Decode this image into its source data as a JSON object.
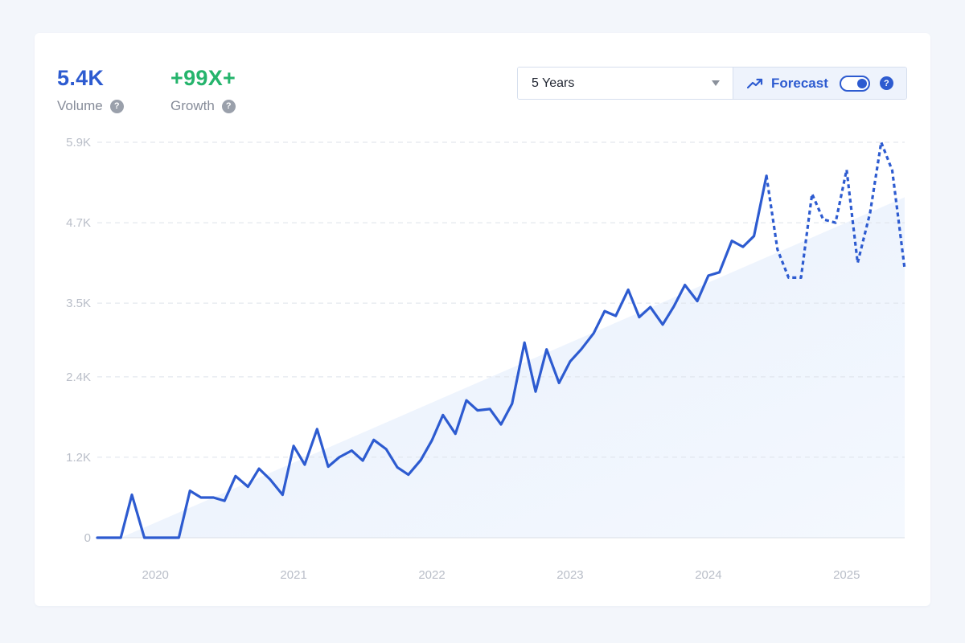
{
  "stats": {
    "volume": {
      "value": "5.4K",
      "label": "Volume"
    },
    "growth": {
      "value": "+99X+",
      "label": "Growth"
    }
  },
  "colors": {
    "volume_value": "#2d5bd0",
    "growth_value": "#25b46c",
    "line": "#2d5bd0",
    "trend_fill": "#e8f0fc",
    "grid": "#dde2ea"
  },
  "controls": {
    "range_selected": "5 Years",
    "forecast_label": "Forecast",
    "forecast_enabled": true,
    "help_glyph": "?",
    "icons": [
      "chevron-down-icon",
      "trend-up-icon",
      "help-icon"
    ]
  },
  "chart_data": {
    "type": "line",
    "title": "",
    "xlabel": "",
    "ylabel": "",
    "ylim": [
      0,
      5900
    ],
    "xlim": [
      2019.58,
      2025.42
    ],
    "grid": true,
    "y_ticks": [
      {
        "value": 0,
        "label": "0"
      },
      {
        "value": 1200,
        "label": "1.2K"
      },
      {
        "value": 2400,
        "label": "2.4K"
      },
      {
        "value": 3500,
        "label": "3.5K"
      },
      {
        "value": 4700,
        "label": "4.7K"
      },
      {
        "value": 5900,
        "label": "5.9K"
      }
    ],
    "x_ticks": [
      {
        "value": 2020.0,
        "label": "2020"
      },
      {
        "value": 2021.0,
        "label": "2021"
      },
      {
        "value": 2022.0,
        "label": "2022"
      },
      {
        "value": 2023.0,
        "label": "2023"
      },
      {
        "value": 2024.0,
        "label": "2024"
      },
      {
        "value": 2025.0,
        "label": "2025"
      }
    ],
    "series": [
      {
        "style": "solid",
        "x": [
          2019.58,
          2019.67,
          2019.75,
          2019.83,
          2019.92,
          2020.0,
          2020.08,
          2020.17,
          2020.25,
          2020.33,
          2020.42,
          2020.5,
          2020.58,
          2020.67,
          2020.75,
          2020.83,
          2020.92,
          2021.0,
          2021.08,
          2021.17,
          2021.25,
          2021.33,
          2021.42,
          2021.5,
          2021.58,
          2021.67,
          2021.75,
          2021.83,
          2021.92,
          2022.0,
          2022.08,
          2022.17,
          2022.25,
          2022.33,
          2022.42,
          2022.5,
          2022.58,
          2022.67,
          2022.75,
          2022.83,
          2022.92,
          2023.0,
          2023.08,
          2023.17,
          2023.25,
          2023.33,
          2023.42,
          2023.5,
          2023.58,
          2023.67,
          2023.75,
          2023.83,
          2023.92,
          2024.0,
          2024.08,
          2024.17,
          2024.25,
          2024.33,
          2024.42
        ],
        "y": [
          0,
          0,
          0,
          640,
          0,
          0,
          0,
          0,
          700,
          600,
          600,
          550,
          920,
          760,
          1030,
          870,
          640,
          1370,
          1090,
          1620,
          1060,
          1200,
          1300,
          1150,
          1460,
          1320,
          1050,
          940,
          1160,
          1450,
          1830,
          1550,
          2050,
          1900,
          1920,
          1690,
          2000,
          2910,
          2180,
          2810,
          2310,
          2630,
          2810,
          3050,
          3380,
          3310,
          3700,
          3290,
          3440,
          3180,
          3450,
          3770,
          3530,
          3910,
          3960,
          4430,
          4340,
          4500,
          5400
        ]
      },
      {
        "style": "dotted",
        "x": [
          2024.42,
          2024.5,
          2024.58,
          2024.67,
          2024.75,
          2024.83,
          2024.92,
          2025.0,
          2025.08,
          2025.17,
          2025.25,
          2025.33,
          2025.42
        ],
        "y": [
          5400,
          4300,
          3880,
          3880,
          5130,
          4750,
          4700,
          5490,
          4100,
          4850,
          5900,
          5480,
          4010
        ]
      }
    ],
    "trend_area": {
      "x": [
        2019.75,
        2025.42
      ],
      "y": [
        0,
        5080
      ]
    }
  }
}
